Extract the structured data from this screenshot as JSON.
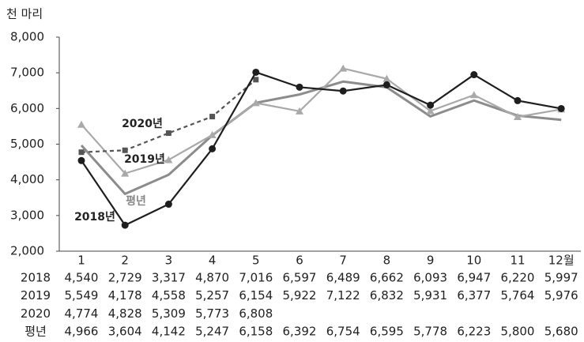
{
  "chart_data": {
    "type": "line",
    "y_label": "천 마리",
    "categories": [
      "1",
      "2",
      "3",
      "4",
      "5",
      "6",
      "7",
      "8",
      "9",
      "10",
      "11",
      "12월"
    ],
    "ylim": [
      2000,
      8000
    ],
    "yticks": [
      {
        "value": 2000,
        "label": "2,000"
      },
      {
        "value": 3000,
        "label": "3,000"
      },
      {
        "value": 4000,
        "label": "4,000"
      },
      {
        "value": 5000,
        "label": "5,000"
      },
      {
        "value": 6000,
        "label": "6,000"
      },
      {
        "value": 7000,
        "label": "7,000"
      },
      {
        "value": 8000,
        "label": "8,000"
      }
    ],
    "series": [
      {
        "name": "2018",
        "label": "2018년",
        "color": "#1e1e1e",
        "marker": "circle",
        "values": [
          4540,
          2729,
          3317,
          4870,
          7016,
          6597,
          6489,
          6662,
          6093,
          6947,
          6220,
          5997
        ],
        "value_labels": [
          "4,540",
          "2,729",
          "3,317",
          "4,870",
          "7,016",
          "6,597",
          "6,489",
          "6,662",
          "6,093",
          "6,947",
          "6,220",
          "5,997"
        ]
      },
      {
        "name": "2019",
        "label": "2019년",
        "color": "#a9a9a9",
        "marker": "triangle",
        "values": [
          5549,
          4178,
          4558,
          5257,
          6154,
          5922,
          7122,
          6832,
          5931,
          6377,
          5764,
          5976
        ],
        "value_labels": [
          "5,549",
          "4,178",
          "4,558",
          "5,257",
          "6,154",
          "5,922",
          "7,122",
          "6,832",
          "5,931",
          "6,377",
          "5,764",
          "5,976"
        ]
      },
      {
        "name": "2020",
        "label": "2020년",
        "color": "#555555",
        "marker": "square",
        "dashed": true,
        "values": [
          4774,
          4828,
          5309,
          5773,
          6808,
          null,
          null,
          null,
          null,
          null,
          null,
          null
        ],
        "value_labels": [
          "4,774",
          "4,828",
          "5,309",
          "5,773",
          "6,808",
          null,
          null,
          null,
          null,
          null,
          null,
          null
        ]
      },
      {
        "name": "평년",
        "label": "평년",
        "color": "#8c8c8c",
        "marker": "none",
        "width": 3,
        "values": [
          4966,
          3604,
          4142,
          5247,
          6158,
          6392,
          6754,
          6595,
          5778,
          6223,
          5800,
          5680
        ],
        "value_labels": [
          "4,966",
          "3,604",
          "4,142",
          "5,247",
          "6,158",
          "6,392",
          "6,754",
          "6,595",
          "5,778",
          "6,223",
          "5,800",
          "5,680"
        ]
      }
    ]
  }
}
